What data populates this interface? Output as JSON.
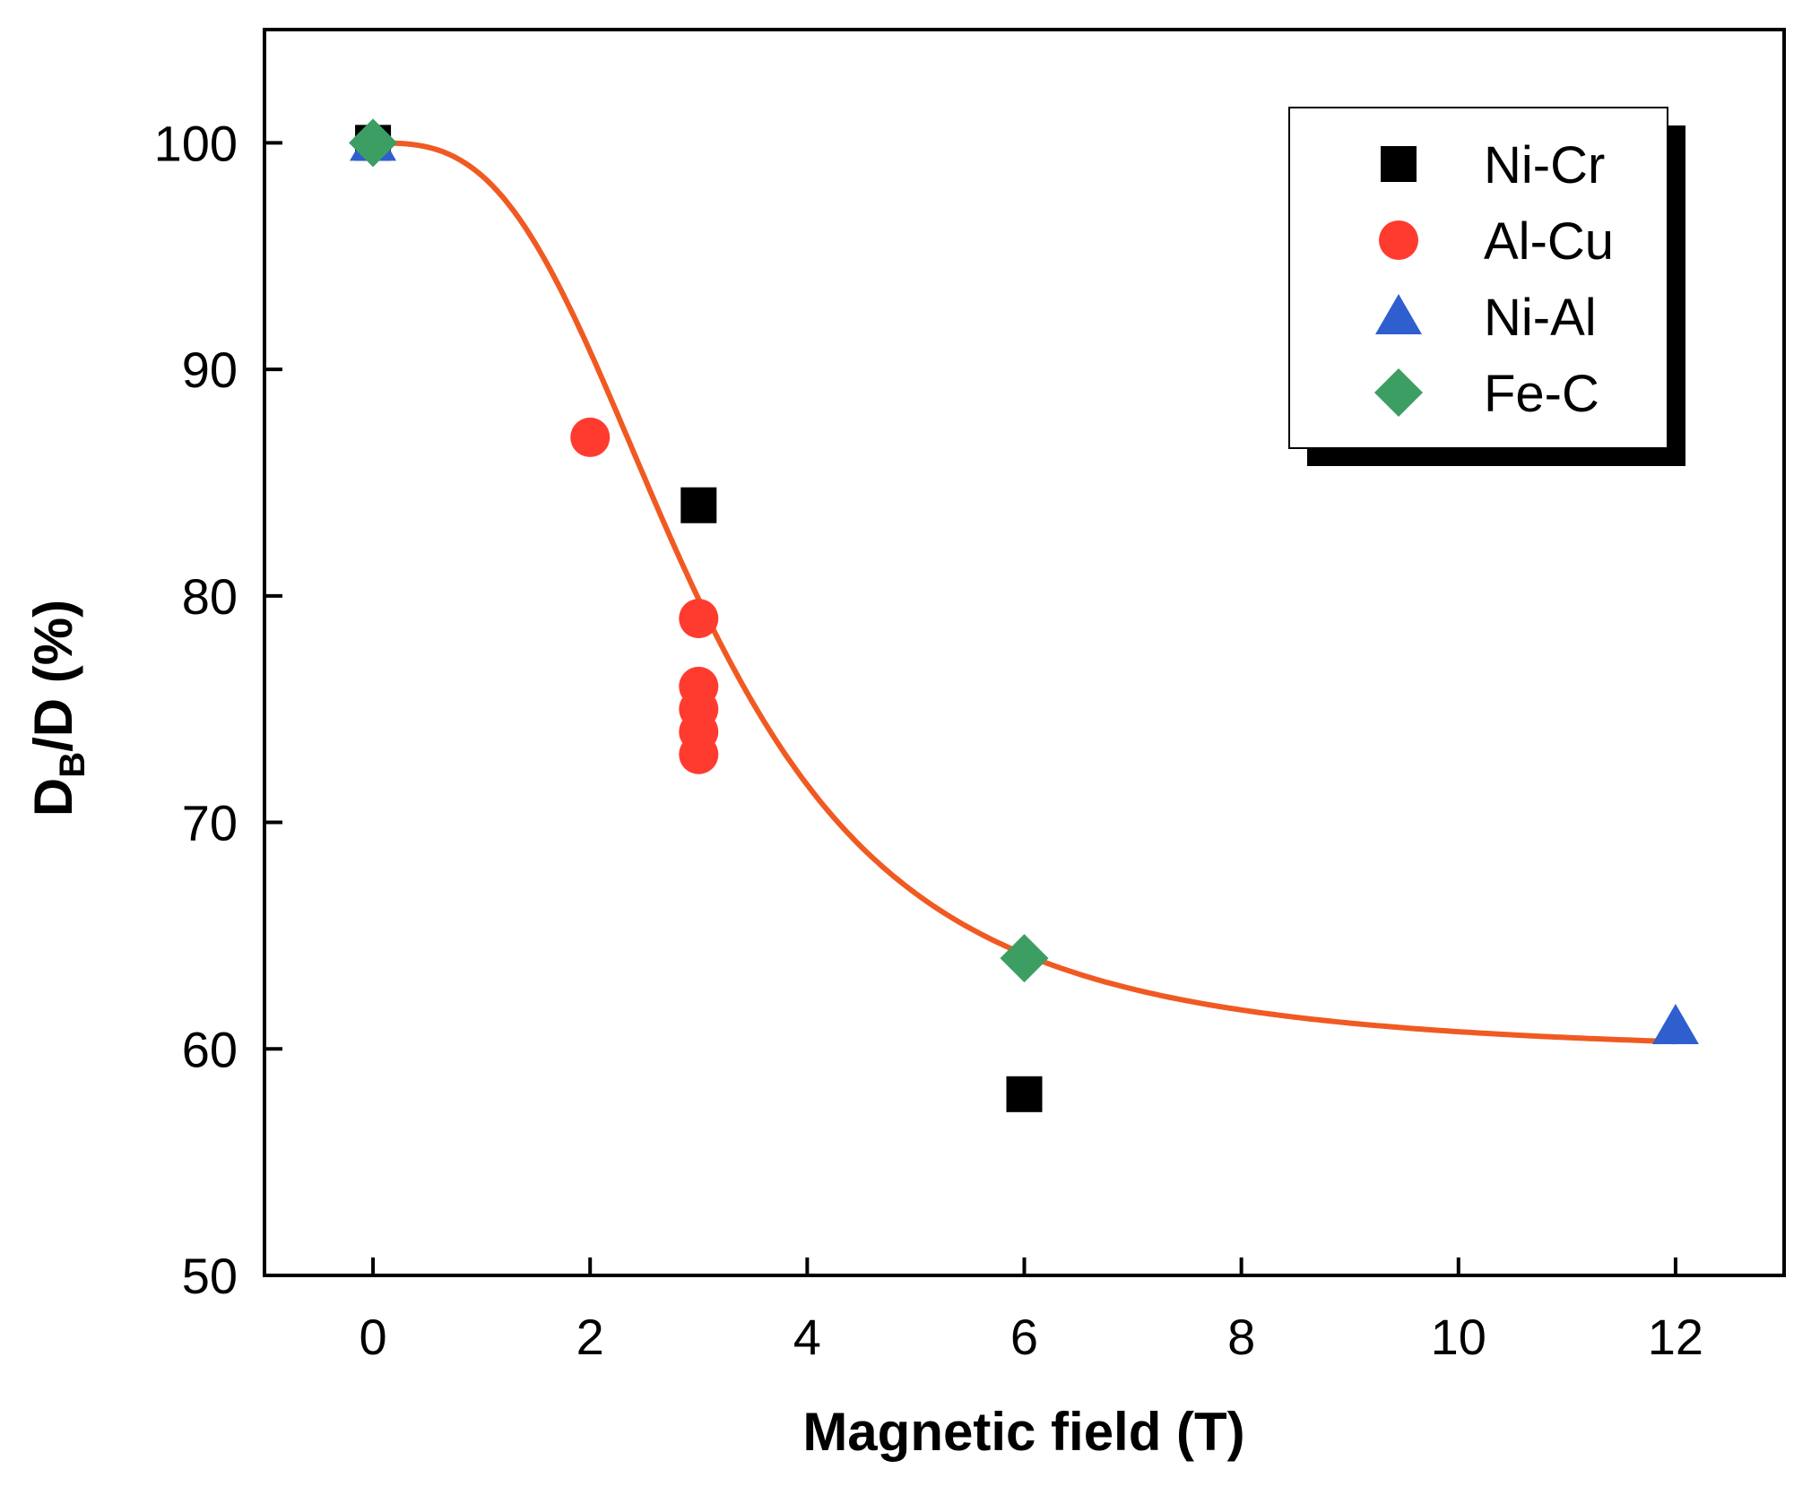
{
  "chart_data": {
    "type": "scatter",
    "title": "",
    "xlabel": "Magnetic field (T)",
    "ylabel": {
      "main": "D",
      "subscript": "B",
      "rest": "/D (%)"
    },
    "xlim": [
      -1,
      13
    ],
    "ylim": [
      50,
      105
    ],
    "xticks": [
      0,
      2,
      4,
      6,
      8,
      10,
      12
    ],
    "yticks": [
      50,
      60,
      70,
      80,
      90,
      100
    ],
    "grid": false,
    "legend_position": "top-right",
    "series": [
      {
        "name": "Ni-Cr",
        "marker": "square",
        "color": "#000000",
        "points": [
          {
            "x": 0,
            "y": 100
          },
          {
            "x": 3,
            "y": 84
          },
          {
            "x": 6,
            "y": 58
          }
        ]
      },
      {
        "name": "Al-Cu",
        "marker": "circle",
        "color": "#ff3b2f",
        "points": [
          {
            "x": 2,
            "y": 87
          },
          {
            "x": 3,
            "y": 79
          },
          {
            "x": 3,
            "y": 76
          },
          {
            "x": 3,
            "y": 75
          },
          {
            "x": 3,
            "y": 74
          },
          {
            "x": 3,
            "y": 73
          }
        ]
      },
      {
        "name": "Ni-Al",
        "marker": "triangle",
        "color": "#2f5fce",
        "points": [
          {
            "x": 0,
            "y": 100
          },
          {
            "x": 12,
            "y": 61
          }
        ]
      },
      {
        "name": "Fe-C",
        "marker": "diamond",
        "color": "#3d9e63",
        "points": [
          {
            "x": 0,
            "y": 100
          },
          {
            "x": 6,
            "y": 64
          }
        ]
      }
    ],
    "fit_curve": {
      "color": "#f05a22",
      "x_range": [
        0,
        12
      ],
      "model": "sigmoid",
      "params": {
        "base": 59.7,
        "amplitude": 40.3,
        "x0": 3.0,
        "n": 3.0
      }
    }
  }
}
